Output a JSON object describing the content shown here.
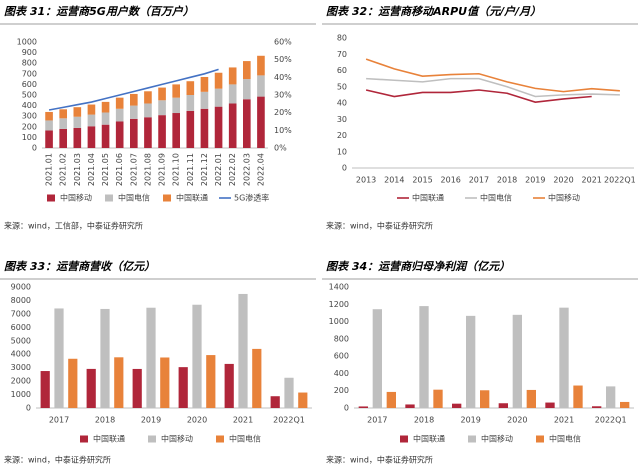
{
  "chart_data": [
    {
      "type": "bar",
      "stacked": true,
      "title": "图表 31：运营商5G用户数（百万户）",
      "source": "来源：wind，工信部，中泰证券研究所",
      "categories": [
        "2021.01",
        "2021.02",
        "2021.03",
        "2021.04",
        "2021.05",
        "2021.06",
        "2021.07",
        "2021.08",
        "2021.09",
        "2021.10",
        "2021.11",
        "2021.12",
        "2022.01",
        "2022.02",
        "2022.03",
        "2022.04"
      ],
      "series": [
        {
          "name": "中国移动",
          "color": "#b0263a",
          "values": [
            165,
            180,
            190,
            205,
            220,
            250,
            275,
            290,
            310,
            330,
            350,
            370,
            390,
            420,
            460,
            485
          ]
        },
        {
          "name": "中国电信",
          "color": "#bfbfbf",
          "values": [
            95,
            100,
            105,
            110,
            115,
            120,
            125,
            130,
            140,
            145,
            150,
            160,
            170,
            180,
            190,
            200
          ]
        },
        {
          "name": "中国联通",
          "color": "#e8823a",
          "values": [
            80,
            85,
            90,
            95,
            100,
            105,
            110,
            115,
            120,
            125,
            130,
            140,
            150,
            160,
            170,
            185
          ]
        },
        {
          "name": "5G渗透率",
          "color": "#4472c4",
          "type": "line",
          "axis": "y2",
          "values": [
            21.5,
            23,
            24.5,
            26,
            28,
            30,
            32,
            34,
            36,
            38,
            40,
            42,
            44.5,
            null,
            null,
            null
          ]
        }
      ],
      "ylim": [
        0,
        1000
      ],
      "yticks": [
        0,
        100,
        200,
        300,
        400,
        500,
        600,
        700,
        800,
        900,
        1000
      ],
      "y2lim": [
        0,
        60
      ],
      "y2ticks": [
        {
          "value": 0,
          "label": "0%"
        },
        {
          "value": 10,
          "label": "10%"
        },
        {
          "value": 20,
          "label": "20%"
        },
        {
          "value": 30,
          "label": "30%"
        },
        {
          "value": 40,
          "label": "40%"
        },
        {
          "value": 50,
          "label": "50%"
        },
        {
          "value": 60,
          "label": "60%"
        }
      ],
      "grid": false
    },
    {
      "type": "line",
      "title": "图表 32：运营商移动ARPU值（元/户/月）",
      "source": "来源：wind，中泰证券研究所",
      "categories": [
        "2013",
        "2014",
        "2015",
        "2016",
        "2017",
        "2018",
        "2019",
        "2020",
        "2021",
        "2022Q1"
      ],
      "series": [
        {
          "name": "中国联通",
          "color": "#b0263a",
          "values": [
            48,
            44,
            46.5,
            46.5,
            48,
            46,
            40.5,
            42.5,
            44,
            null
          ]
        },
        {
          "name": "中国电信",
          "color": "#bfbfbf",
          "values": [
            55,
            54,
            53,
            55,
            55,
            50,
            44,
            45,
            45.5,
            45
          ]
        },
        {
          "name": "中国移动",
          "color": "#e8823a",
          "values": [
            67,
            61,
            56.5,
            57.5,
            58,
            53,
            49,
            47,
            48.8,
            47.5
          ]
        }
      ],
      "ylim": [
        0,
        80
      ],
      "yticks": [
        0,
        10,
        20,
        30,
        40,
        50,
        60,
        70,
        80
      ],
      "grid": false
    },
    {
      "type": "bar",
      "title": "图表 33：运营商营收（亿元）",
      "source": "来源：wind，中泰证券研究所",
      "categories": [
        "2017",
        "2018",
        "2019",
        "2020",
        "2021",
        "2022Q1"
      ],
      "series": [
        {
          "name": "中国联通",
          "color": "#b0263a",
          "values": [
            2749,
            2908,
            2905,
            3039,
            3279,
            876
          ]
        },
        {
          "name": "中国移动",
          "color": "#bfbfbf",
          "values": [
            7405,
            7368,
            7459,
            7681,
            8483,
            2250
          ]
        },
        {
          "name": "中国电信",
          "color": "#e8823a",
          "values": [
            3662,
            3771,
            3757,
            3936,
            4396,
            1150
          ]
        }
      ],
      "ylim": [
        0,
        9000
      ],
      "yticks": [
        0,
        1000,
        2000,
        3000,
        4000,
        5000,
        6000,
        7000,
        8000,
        9000
      ],
      "grid": false
    },
    {
      "type": "bar",
      "title": "图表 34：运营商归母净利润（亿元）",
      "source": "来源：wind，中泰证券研究所",
      "categories": [
        "2017",
        "2018",
        "2019",
        "2020",
        "2021",
        "2022Q1"
      ],
      "series": [
        {
          "name": "中国联通",
          "color": "#b0263a",
          "values": [
            18,
            41,
            50,
            55,
            63,
            20
          ]
        },
        {
          "name": "中国移动",
          "color": "#bfbfbf",
          "values": [
            1143,
            1179,
            1066,
            1078,
            1161,
            250
          ]
        },
        {
          "name": "中国电信",
          "color": "#e8823a",
          "values": [
            186,
            212,
            205,
            209,
            260,
            70
          ]
        }
      ],
      "ylim": [
        0,
        1400
      ],
      "yticks": [
        0,
        200,
        400,
        600,
        800,
        1000,
        1200,
        1400
      ],
      "grid": false
    }
  ]
}
